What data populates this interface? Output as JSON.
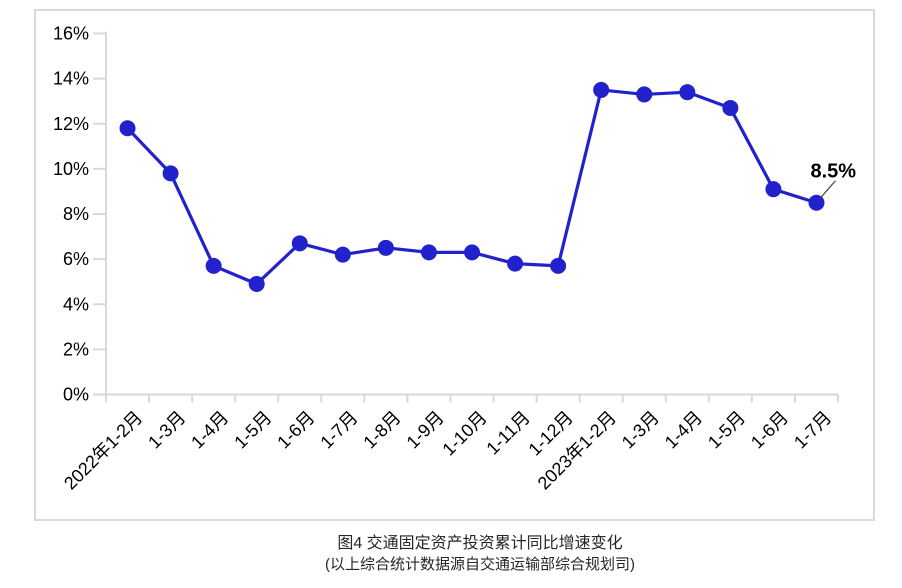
{
  "figure": {
    "title": "图4  交通固定资产投资累计同比增速变化",
    "source_note": "(以上综合统计数据源自交通运输部综合规划司)"
  },
  "chart_data": {
    "type": "line",
    "title": "",
    "xlabel": "",
    "ylabel": "",
    "categories": [
      "2022年1-2月",
      "1-3月",
      "1-4月",
      "1-5月",
      "1-6月",
      "1-7月",
      "1-8月",
      "1-9月",
      "1-10月",
      "1-11月",
      "1-12月",
      "2023年1-2月",
      "1-3月",
      "1-4月",
      "1-5月",
      "1-6月",
      "1-7月"
    ],
    "series": [
      {
        "name": "交通固定资产投资累计同比增速",
        "values": [
          11.8,
          9.8,
          5.7,
          4.9,
          6.7,
          6.2,
          6.5,
          6.3,
          6.3,
          5.8,
          5.7,
          13.5,
          13.3,
          13.4,
          12.7,
          9.1,
          8.5
        ]
      }
    ],
    "ylim": [
      0,
      16
    ],
    "y_tick_step": 2,
    "y_tick_labels": [
      "0%",
      "2%",
      "4%",
      "6%",
      "8%",
      "10%",
      "12%",
      "14%",
      "16%"
    ],
    "grid": false,
    "legend_position": "none",
    "annotation": {
      "text": "8.5%",
      "category_index": 16
    },
    "colors": {
      "line": "#2222cc",
      "marker": "#2222cc",
      "axis": "#d9d9d9",
      "tick_label": "#000000",
      "annotation": "#000000",
      "leader_line": "#404040"
    }
  }
}
